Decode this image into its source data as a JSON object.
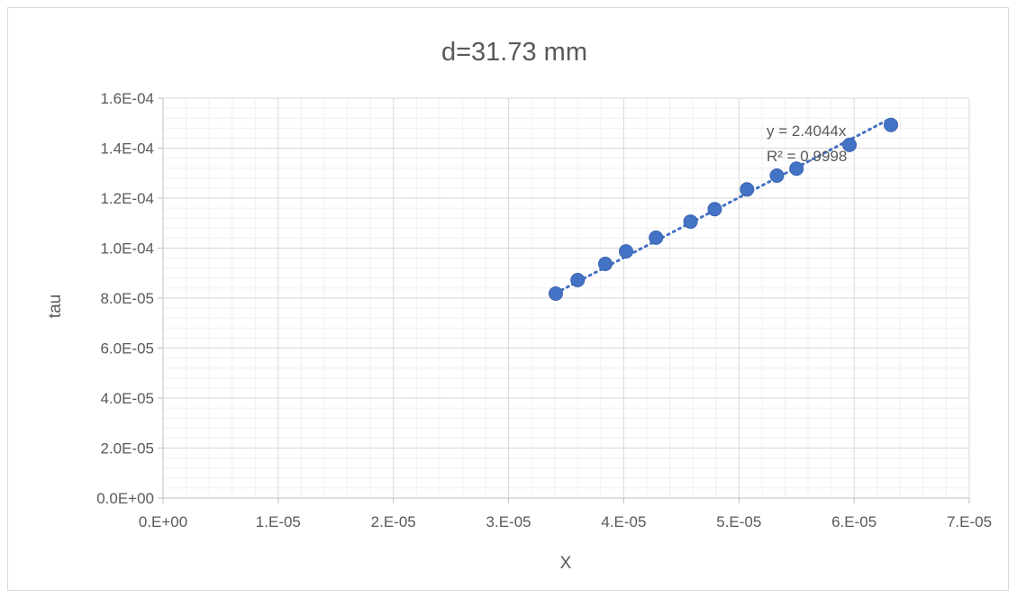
{
  "chart_data": {
    "type": "scatter",
    "title": "d=31.73 mm",
    "xlabel": "X",
    "ylabel": "tau",
    "xlim": [
      0,
      7e-05
    ],
    "ylim": [
      0,
      0.00016
    ],
    "x_tick_labels": [
      "0.E+00",
      "1.E-05",
      "2.E-05",
      "3.E-05",
      "4.E-05",
      "5.E-05",
      "6.E-05",
      "7.E-05"
    ],
    "y_tick_labels": [
      "0.0E+00",
      "2.0E-05",
      "4.0E-05",
      "6.0E-05",
      "8.0E-05",
      "1.0E-04",
      "1.2E-04",
      "1.4E-04",
      "1.6E-04"
    ],
    "grid": true,
    "series": [
      {
        "color": "#4472C4",
        "points": [
          {
            "x": 3.41e-05,
            "y": 8.18e-05
          },
          {
            "x": 3.6e-05,
            "y": 8.72e-05
          },
          {
            "x": 3.84e-05,
            "y": 9.37e-05
          },
          {
            "x": 4.02e-05,
            "y": 9.87e-05
          },
          {
            "x": 4.28e-05,
            "y": 0.0001042
          },
          {
            "x": 4.58e-05,
            "y": 0.0001106
          },
          {
            "x": 4.79e-05,
            "y": 0.0001156
          },
          {
            "x": 5.07e-05,
            "y": 0.0001235
          },
          {
            "x": 5.33e-05,
            "y": 0.000129
          },
          {
            "x": 5.5e-05,
            "y": 0.0001318
          },
          {
            "x": 5.96e-05,
            "y": 0.0001413
          },
          {
            "x": 6.32e-05,
            "y": 0.0001493
          }
        ]
      }
    ],
    "trendline": {
      "type": "linear",
      "slope": 2.4044,
      "intercept": 0,
      "x_range": [
        3.41e-05,
        6.32e-05
      ],
      "style": "dotted",
      "color": "#4472C4",
      "equation_label": "y = 2.4044x",
      "r2_label": "R² = 0.9998"
    }
  }
}
